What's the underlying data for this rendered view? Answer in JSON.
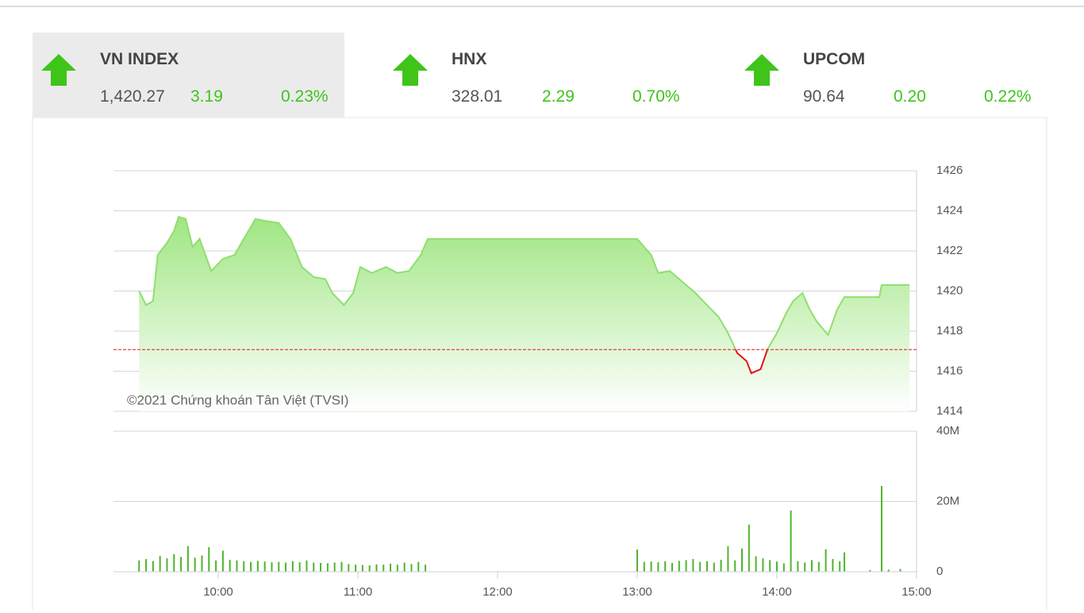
{
  "indices": [
    {
      "name": "VN INDEX",
      "value": "1,420.27",
      "change": "3.19",
      "percent": "0.23%"
    },
    {
      "name": "HNX",
      "value": "328.01",
      "change": "2.29",
      "percent": "0.70%"
    },
    {
      "name": "UPCOM",
      "value": "90.64",
      "change": "0.20",
      "percent": "0.22%"
    }
  ],
  "chart_data": [
    {
      "type": "area",
      "annotation": "©2021 Chứng khoán Tân Việt (TVSI)",
      "x": [
        "09:26",
        "09:29",
        "09:32",
        "09:34",
        "09:38",
        "09:41",
        "09:43",
        "09:46",
        "09:49",
        "09:52",
        "09:57",
        "10:02",
        "10:07",
        "10:12",
        "10:16",
        "10:20",
        "10:26",
        "10:31",
        "10:36",
        "10:41",
        "10:46",
        "10:49",
        "10:54",
        "10:58",
        "11:01",
        "11:06",
        "11:12",
        "11:17",
        "11:22",
        "11:27",
        "11:30",
        "13:00",
        "13:06",
        "13:09",
        "13:14",
        "13:19",
        "13:25",
        "13:30",
        "13:35",
        "13:39",
        "13:43",
        "13:47",
        "13:49",
        "13:53",
        "13:56",
        "14:00",
        "14:04",
        "14:07",
        "14:11",
        "14:14",
        "14:17",
        "14:22",
        "14:26",
        "14:29",
        "14:44",
        "14:45",
        "14:57"
      ],
      "series": [
        {
          "name": "VN INDEX",
          "color": "#8fdf6e",
          "color_below": "#e3141b",
          "values": [
            1420.0,
            1419.3,
            1419.5,
            1421.8,
            1422.4,
            1423.0,
            1423.7,
            1423.6,
            1422.2,
            1422.6,
            1421.0,
            1421.6,
            1421.8,
            1422.8,
            1423.6,
            1423.5,
            1423.4,
            1422.6,
            1421.2,
            1420.7,
            1420.6,
            1419.9,
            1419.3,
            1419.9,
            1421.2,
            1420.9,
            1421.2,
            1420.9,
            1421.0,
            1421.8,
            1422.6,
            1422.6,
            1421.8,
            1420.9,
            1421.0,
            1420.5,
            1419.9,
            1419.3,
            1418.7,
            1417.9,
            1416.9,
            1416.5,
            1415.9,
            1416.1,
            1417.1,
            1417.9,
            1418.9,
            1419.5,
            1419.9,
            1419.1,
            1418.5,
            1417.8,
            1419.1,
            1419.7,
            1419.7,
            1420.3,
            1420.3
          ]
        }
      ],
      "reference_line": 1417.08,
      "xlim": [
        "09:15",
        "15:00"
      ],
      "ylim": [
        1414,
        1426
      ],
      "yticks": [
        1414,
        1416,
        1418,
        1420,
        1422,
        1424,
        1426
      ],
      "grid": true
    },
    {
      "type": "bar",
      "color": "#4fb52a",
      "x": [
        "09:26",
        "09:29",
        "09:32",
        "09:35",
        "09:38",
        "09:41",
        "09:44",
        "09:47",
        "09:50",
        "09:53",
        "09:56",
        "09:59",
        "10:02",
        "10:05",
        "10:08",
        "10:11",
        "10:14",
        "10:17",
        "10:20",
        "10:23",
        "10:26",
        "10:29",
        "10:32",
        "10:35",
        "10:38",
        "10:41",
        "10:44",
        "10:47",
        "10:50",
        "10:53",
        "10:56",
        "10:59",
        "11:02",
        "11:05",
        "11:08",
        "11:11",
        "11:14",
        "11:17",
        "11:20",
        "11:23",
        "11:26",
        "11:29",
        "13:00",
        "13:03",
        "13:06",
        "13:09",
        "13:12",
        "13:15",
        "13:18",
        "13:21",
        "13:24",
        "13:27",
        "13:30",
        "13:33",
        "13:36",
        "13:39",
        "13:42",
        "13:45",
        "13:48",
        "13:51",
        "13:54",
        "13:57",
        "14:00",
        "14:03",
        "14:06",
        "14:09",
        "14:12",
        "14:15",
        "14:18",
        "14:21",
        "14:24",
        "14:27",
        "14:29",
        "14:40",
        "14:45",
        "14:48",
        "14:53"
      ],
      "values": [
        3200000,
        3600000,
        3000000,
        4500000,
        3800000,
        5000000,
        4200000,
        7300000,
        4000000,
        4600000,
        7000000,
        3200000,
        6000000,
        3400000,
        3200000,
        3000000,
        2800000,
        3100000,
        2900000,
        2700000,
        2800000,
        2600000,
        3000000,
        2700000,
        3200000,
        2600000,
        2500000,
        2400000,
        2600000,
        2800000,
        2200000,
        2000000,
        1900000,
        1800000,
        2100000,
        2000000,
        2300000,
        2000000,
        2600000,
        2200000,
        2800000,
        2000000,
        6300000,
        2800000,
        2900000,
        2700000,
        3000000,
        2500000,
        3100000,
        3300000,
        3600000,
        2800000,
        3000000,
        2600000,
        3400000,
        7300000,
        3200000,
        6600000,
        13400000,
        4400000,
        3800000,
        3300000,
        2900000,
        2400000,
        17400000,
        3000000,
        2600000,
        3300000,
        2800000,
        6400000,
        3600000,
        3000000,
        5500000,
        500000,
        24400000,
        600000,
        800000
      ],
      "xlim": [
        "09:15",
        "15:00"
      ],
      "xticks": [
        "10:00",
        "11:00",
        "12:00",
        "13:00",
        "14:00",
        "15:00"
      ],
      "ylim": [
        0,
        40000000
      ],
      "yticks": [
        0,
        {
          "value": 20000000,
          "label": "20M"
        },
        {
          "value": 40000000,
          "label": "40M"
        }
      ],
      "grid": true
    }
  ]
}
